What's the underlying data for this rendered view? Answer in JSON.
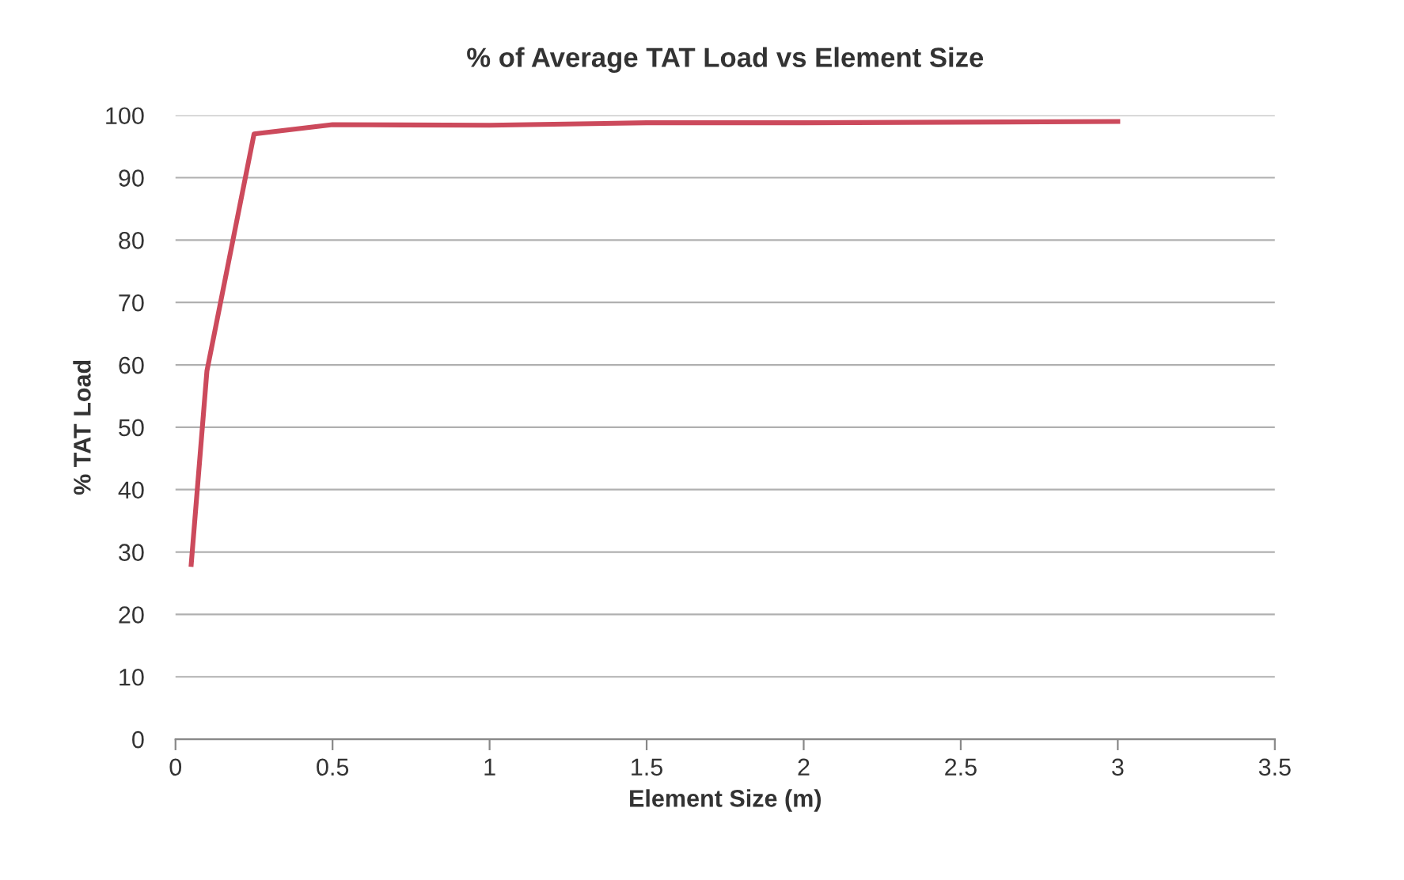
{
  "chart_data": {
    "type": "line",
    "title": "% of Average TAT Load vs Element Size",
    "xlabel": "Element Size (m)",
    "ylabel": "% TAT Load",
    "x": [
      0.05,
      0.1,
      0.25,
      0.5,
      1,
      1.5,
      2,
      3
    ],
    "series": [
      {
        "color": "#cc4a5c",
        "values": [
          28,
          59,
          97,
          98.5,
          98.4,
          98.8,
          98.8,
          99
        ]
      }
    ],
    "xlim": [
      0,
      3.5
    ],
    "xticks": [
      0,
      0.5,
      1,
      1.5,
      2,
      2.5,
      3,
      3.5
    ],
    "ylim": [
      0,
      100
    ],
    "yticks": [
      0,
      10,
      20,
      30,
      40,
      50,
      60,
      70,
      80,
      90,
      100
    ],
    "grid": "y",
    "marker": "none",
    "line_style": "solid"
  }
}
